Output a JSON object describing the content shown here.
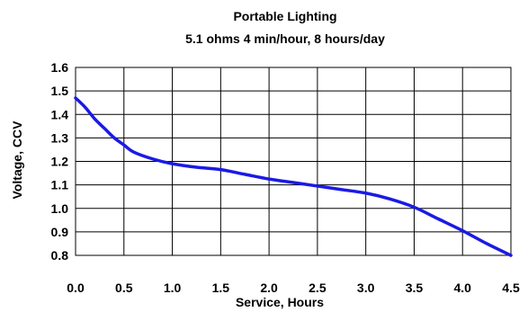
{
  "chart_data": {
    "type": "line",
    "title": "Portable Lighting",
    "subtitle": "5.1 ohms 4 min/hour, 8 hours/day",
    "xlabel": "Service, Hours",
    "ylabel": "Voltage, CCV",
    "xlim": [
      0,
      4.5
    ],
    "ylim": [
      0.8,
      1.6
    ],
    "xticks": [
      "0.0",
      "0.5",
      "1.0",
      "1.5",
      "2.0",
      "2.5",
      "3.0",
      "3.5",
      "4.0",
      "4.5"
    ],
    "yticks": [
      "0.8",
      "0.9",
      "1.0",
      "1.1",
      "1.2",
      "1.3",
      "1.4",
      "1.5",
      "1.6"
    ],
    "grid": true,
    "line_color": "#1a1ae6",
    "series": [
      {
        "x": [
          0.0,
          0.1,
          0.2,
          0.3,
          0.4,
          0.5,
          0.6,
          0.8,
          1.0,
          1.25,
          1.5,
          1.75,
          2.0,
          2.25,
          2.5,
          2.75,
          3.0,
          3.25,
          3.5,
          3.75,
          4.0,
          4.25,
          4.5
        ],
        "y": [
          1.47,
          1.43,
          1.38,
          1.34,
          1.3,
          1.27,
          1.24,
          1.21,
          1.19,
          1.175,
          1.165,
          1.145,
          1.125,
          1.11,
          1.095,
          1.08,
          1.065,
          1.04,
          1.005,
          0.955,
          0.905,
          0.85,
          0.8
        ]
      }
    ]
  }
}
